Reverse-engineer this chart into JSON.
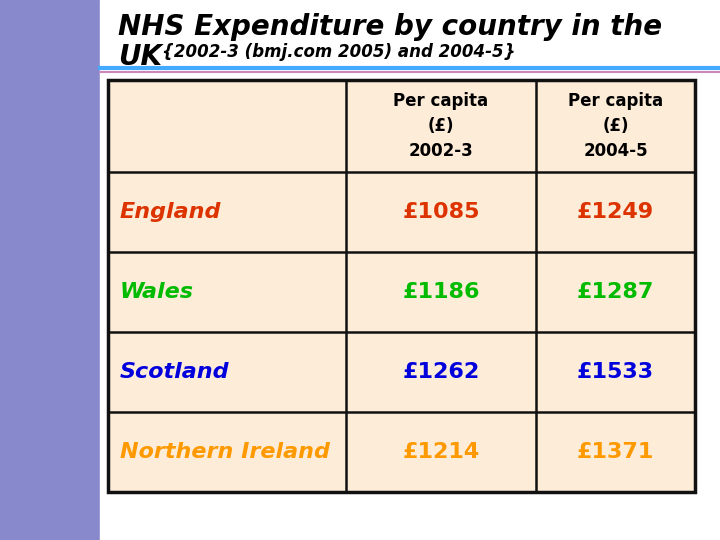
{
  "title_line1": "NHS Expenditure by country in the",
  "title_line2": "UK",
  "subtitle": "{2002-3 (bmj.com 2005) and 2004-5}",
  "bg_color": "#9999cc",
  "slide_bg": "#ffffff",
  "panel_bg": "#fdecd8",
  "table_border_color": "#111111",
  "header_text_color": "#000000",
  "col1_header": "Per capita\n(£)\n2002-3",
  "col2_header": "Per capita\n(£)\n2004-5",
  "rows": [
    {
      "country": "England",
      "color": "#dd3300",
      "val1": "£1085",
      "val2": "£1249"
    },
    {
      "country": "Wales",
      "color": "#00bb00",
      "val1": "£1186",
      "val2": "£1287"
    },
    {
      "country": "Scotland",
      "color": "#0000dd",
      "val1": "£1262",
      "val2": "£1533"
    },
    {
      "country": "Northern Ireland",
      "color": "#ff9900",
      "val1": "£1214",
      "val2": "£1371"
    }
  ],
  "separator_color": "#44aaff",
  "left_bar_color": "#8888cc",
  "fig_width": 7.2,
  "fig_height": 5.4,
  "dpi": 100
}
